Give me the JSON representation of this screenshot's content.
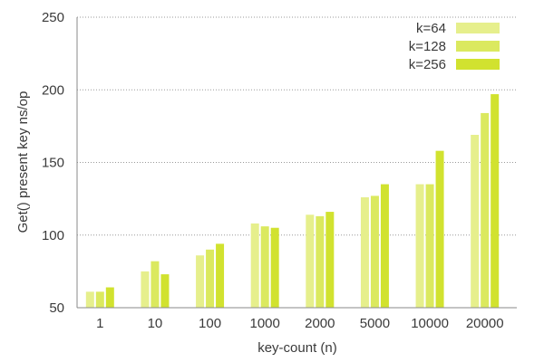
{
  "chart_data": {
    "type": "bar",
    "title": "",
    "xlabel": "key-count (n)",
    "ylabel": "Get() present key ns/op",
    "categories": [
      "1",
      "10",
      "100",
      "1000",
      "2000",
      "5000",
      "10000",
      "20000"
    ],
    "ylim": [
      50,
      250
    ],
    "yticks": [
      50,
      100,
      150,
      200,
      250
    ],
    "grid": "horizontal dotted",
    "legend_position": "top-right",
    "series": [
      {
        "name": "k=64",
        "color": "#e6ef8c",
        "values": [
          61,
          75,
          86,
          108,
          114,
          126,
          135,
          169
        ]
      },
      {
        "name": "k=128",
        "color": "#dbe95f",
        "values": [
          61,
          82,
          90,
          106,
          113,
          127,
          135,
          184
        ]
      },
      {
        "name": "k=256",
        "color": "#d1e22f",
        "values": [
          64,
          73,
          94,
          105,
          116,
          135,
          158,
          197
        ]
      }
    ]
  }
}
